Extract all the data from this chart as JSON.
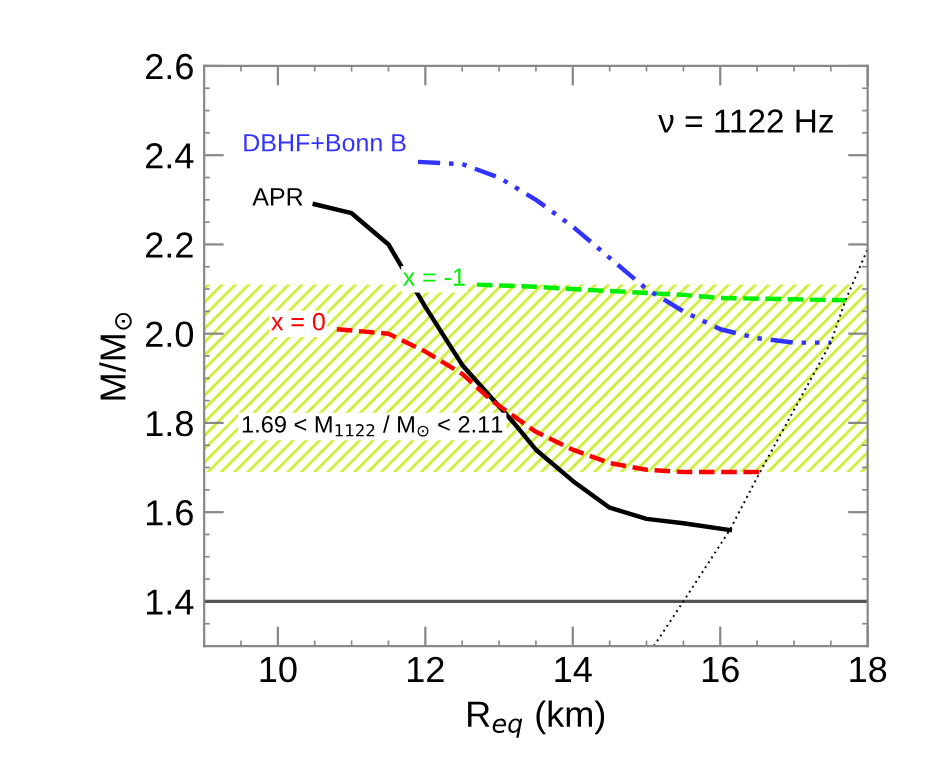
{
  "chart_data": {
    "type": "line",
    "xlabel": "R$_{eq}$ (km)",
    "ylabel": "M/M$_{⊙}$",
    "xlim": [
      9,
      18
    ],
    "xticks": [
      10,
      12,
      14,
      16,
      18
    ],
    "ylim": [
      1.3,
      2.6
    ],
    "yticks": [
      1.4,
      1.6,
      1.8,
      {
        "value": 2.0,
        "label": "2.0"
      },
      2.2,
      2.4,
      2.6
    ],
    "grid": false,
    "legend": false,
    "series": [
      {
        "name": "APR",
        "color": "#000000",
        "line_style": "solid",
        "x": [
          10.5,
          11,
          11.5,
          12,
          12.5,
          13.2,
          13.5,
          14,
          14.5,
          15,
          15.5,
          16.13
        ],
        "values": [
          2.29,
          2.27,
          2.2,
          2.06,
          1.93,
          1.8,
          1.74,
          1.67,
          1.61,
          1.585,
          1.575,
          1.56
        ]
      },
      {
        "name": "x = 0",
        "color": "#ff0000",
        "line_style": "dashed",
        "x": [
          10.8,
          11.5,
          12,
          12.5,
          12.9,
          13.5,
          14,
          14.5,
          15,
          15.5,
          16.54
        ],
        "values": [
          2.01,
          2.0,
          1.96,
          1.91,
          1.85,
          1.78,
          1.74,
          1.71,
          1.695,
          1.69,
          1.69
        ]
      },
      {
        "name": "x = -1",
        "color": "#00ee00",
        "line_style": "dashed",
        "x": [
          12.7,
          13.5,
          14,
          15.5,
          16,
          17,
          17.7
        ],
        "values": [
          2.11,
          2.105,
          2.1,
          2.087,
          2.08,
          2.077,
          2.075
        ]
      },
      {
        "name": "DBHF+Bonn B",
        "color": "#3333ff",
        "line_style": "dashdot",
        "x": [
          11.9,
          12.5,
          13,
          13.5,
          14,
          14.5,
          15,
          15.5,
          16,
          16.5,
          17,
          17.5
        ],
        "values": [
          2.385,
          2.38,
          2.35,
          2.3,
          2.24,
          2.17,
          2.1,
          2.05,
          2.01,
          1.99,
          1.98,
          1.98
        ]
      },
      {
        "color": "#000000",
        "line_style": "dotted",
        "x": [
          15.1,
          15.5,
          16.13,
          16.54,
          17.5,
          17.7,
          18
        ],
        "values": [
          1.3,
          1.4,
          1.56,
          1.69,
          1.98,
          2.075,
          2.19
        ]
      }
    ],
    "ref_lines": [
      {
        "axis": "y",
        "value": 1.4,
        "color": "#555555",
        "line_style": "solid"
      }
    ],
    "bands": [
      {
        "axis": "y",
        "from": 1.69,
        "to": 2.11,
        "color": "#ccee33",
        "label": "1.69 < M$_{1122}$ / M$_{⊙}$ < 2.11"
      }
    ],
    "annotations": [
      "ν = 1122 Hz"
    ]
  }
}
